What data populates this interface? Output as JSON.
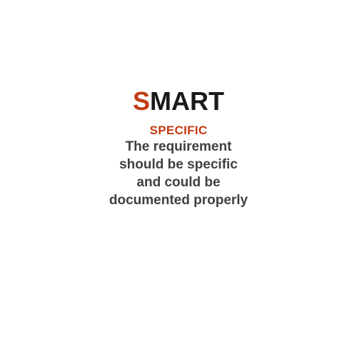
{
  "slide": {
    "title_first_letter": "S",
    "title_rest": "MART",
    "subtitle": "SPECIFIC",
    "description_lines": [
      "The requirement",
      "should be specific",
      "and could be",
      "documented properly"
    ]
  },
  "colors": {
    "accent": "#c23b12",
    "title_text": "#1a1a1a",
    "body_text": "#404040",
    "background": "#ffffff"
  }
}
